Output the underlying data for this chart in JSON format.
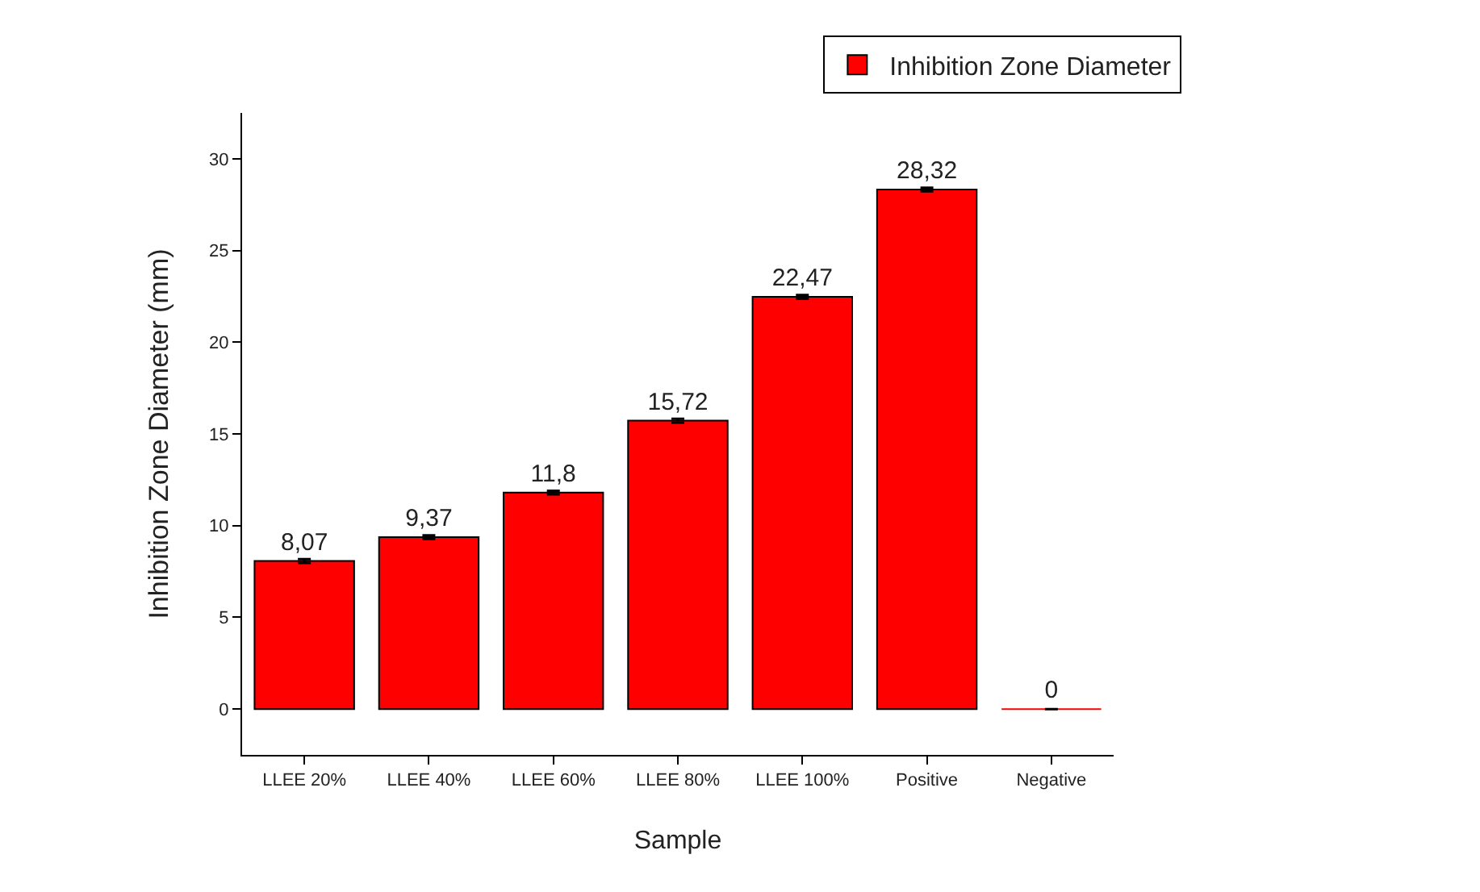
{
  "chart_data": {
    "type": "bar",
    "xlabel": "Sample",
    "ylabel": "Inhibition Zone Diameter (mm)",
    "categories": [
      "LLEE 20%",
      "LLEE 40%",
      "LLEE 60%",
      "LLEE 80%",
      "LLEE 100%",
      "Positive",
      "Negative"
    ],
    "series": [
      {
        "name": "Inhibition Zone Diameter",
        "color": "#ff0000",
        "values": [
          8.07,
          9.37,
          11.8,
          15.72,
          22.47,
          28.32,
          0
        ],
        "errors": [
          0.1,
          0.1,
          0.1,
          0.1,
          0.1,
          0.1,
          null
        ],
        "value_labels": [
          "8,07",
          "9,37",
          "11,8",
          "15,72",
          "22,47",
          "28,32",
          "0"
        ]
      }
    ],
    "ylim": [
      -2.5,
      32.5
    ],
    "yticks": [
      0,
      5,
      10,
      15,
      20,
      25,
      30
    ],
    "grid": false,
    "legend": "top right"
  }
}
